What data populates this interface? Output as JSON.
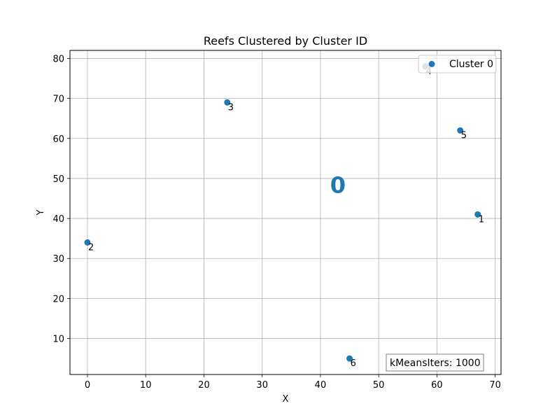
{
  "chart_data": {
    "type": "scatter",
    "title": "Reefs Clustered by Cluster ID",
    "xlabel": "X",
    "ylabel": "Y",
    "xlim": [
      -3,
      71
    ],
    "ylim": [
      1,
      82
    ],
    "xticks": [
      0,
      10,
      20,
      30,
      40,
      50,
      60,
      70
    ],
    "yticks": [
      10,
      20,
      30,
      40,
      50,
      60,
      70,
      80
    ],
    "grid": true,
    "legend_position": "top-right",
    "series": [
      {
        "name": "Cluster 0",
        "color": "#1f77b4",
        "points": [
          {
            "x": 67,
            "y": 41,
            "label": "1"
          },
          {
            "x": 0,
            "y": 34,
            "label": "2"
          },
          {
            "x": 24,
            "y": 69,
            "label": "3"
          },
          {
            "x": 58,
            "y": 78,
            "label": "4"
          },
          {
            "x": 64,
            "y": 62,
            "label": "5"
          },
          {
            "x": 45,
            "y": 5,
            "label": "6"
          }
        ]
      }
    ],
    "centroids": [
      {
        "label": "0",
        "x": 43,
        "y": 48.5,
        "color": "#1f77b4"
      }
    ],
    "annotation_box": "kMeansIters: 1000"
  }
}
